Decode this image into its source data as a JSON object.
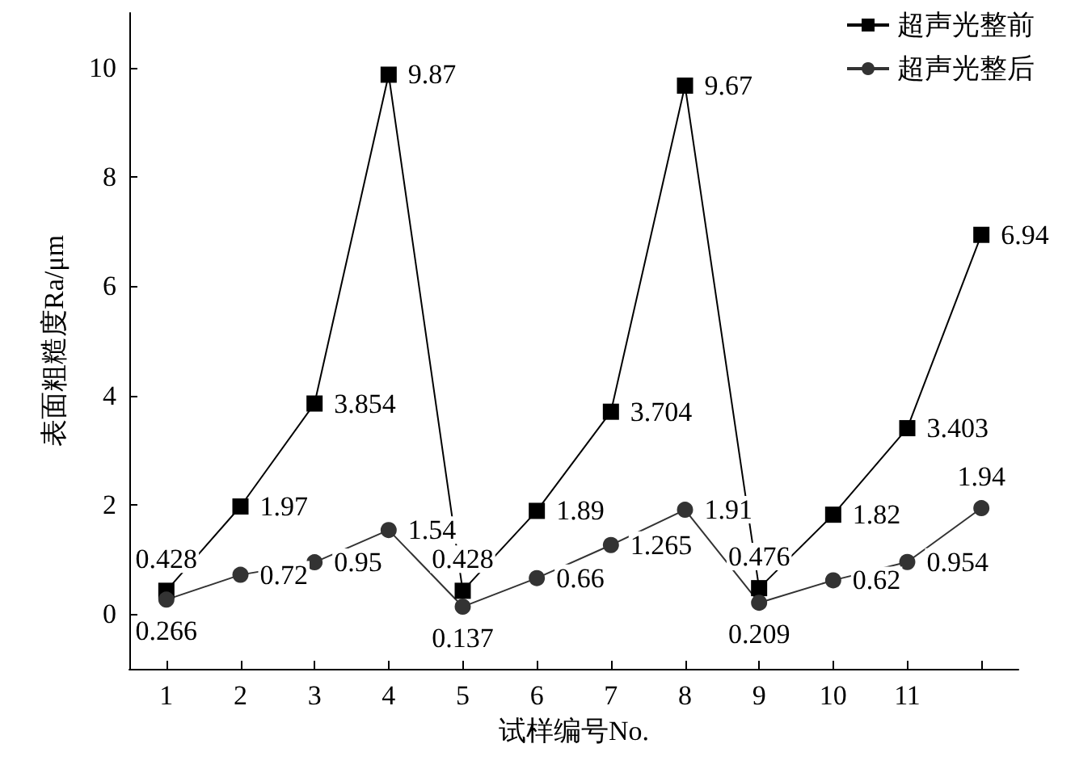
{
  "chart_data": {
    "type": "line",
    "xlabel": "试样编号No.",
    "ylabel": "表面粗糙度Ra/μm",
    "x": [
      1,
      2,
      3,
      4,
      5,
      6,
      7,
      8,
      9,
      10,
      11,
      12
    ],
    "series": [
      {
        "name": "超声光整前",
        "color": "#000000",
        "marker": "square",
        "values": [
          0.428,
          1.97,
          3.854,
          9.87,
          0.428,
          1.89,
          3.704,
          9.67,
          0.476,
          1.82,
          3.403,
          6.94
        ]
      },
      {
        "name": "超声光整后",
        "color": "#333333",
        "marker": "circle",
        "values": [
          0.266,
          0.72,
          0.95,
          1.54,
          0.137,
          0.66,
          1.265,
          1.91,
          0.209,
          0.62,
          0.954,
          1.94
        ]
      }
    ],
    "xlim": [
      0.5,
      12.5
    ],
    "xticks": [
      1,
      2,
      3,
      4,
      5,
      6,
      7,
      8,
      9,
      10,
      11,
      {
        "value": 12,
        "label": null
      }
    ],
    "ylim": [
      -1,
      11
    ],
    "yticks": [
      0,
      2,
      4,
      6,
      8,
      10
    ],
    "data_labels": true,
    "grid": false,
    "legend": "top right",
    "line_style": "solid"
  }
}
